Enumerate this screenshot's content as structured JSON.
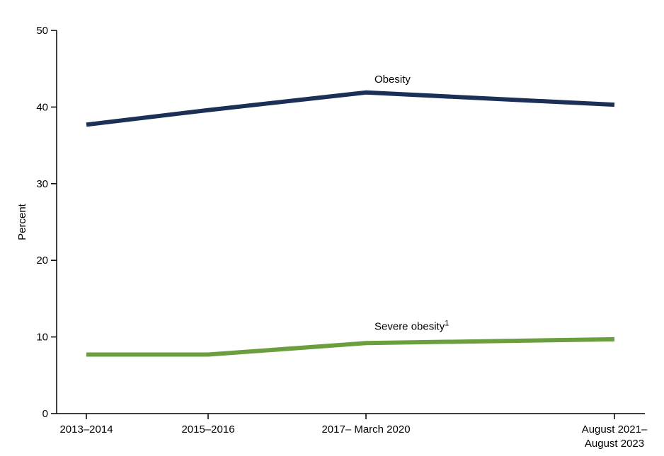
{
  "chart_data": {
    "type": "line",
    "title": "",
    "xlabel": "",
    "ylabel": "Percent",
    "ylim": [
      0,
      50
    ],
    "yticks": [
      0,
      10,
      20,
      30,
      40,
      50
    ],
    "grid": false,
    "legend": "none",
    "categories": [
      [
        "2013–2014"
      ],
      [
        "2015–2016"
      ],
      [
        "2017– March 2020"
      ],
      [
        "August 2021–",
        "August 2023"
      ]
    ],
    "series": [
      {
        "name": "Obesity",
        "name_superscript": "",
        "color": "#1b2f57",
        "values": [
          37.7,
          39.6,
          41.9,
          40.3
        ]
      },
      {
        "name": "Severe obesity",
        "name_superscript": "1",
        "color": "#6b9e3f",
        "values": [
          7.7,
          7.7,
          9.2,
          9.7
        ]
      }
    ]
  }
}
